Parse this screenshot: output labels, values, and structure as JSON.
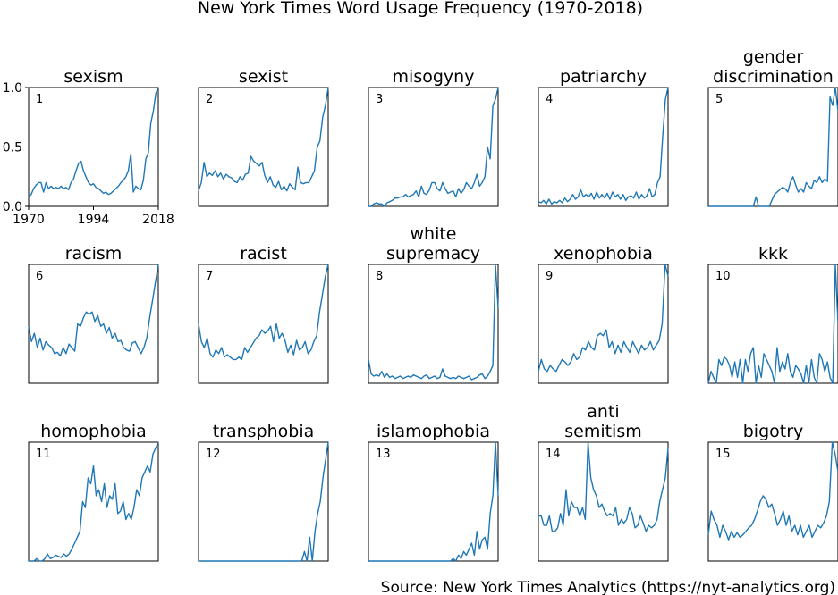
{
  "title": "New York Times Word Usage Frequency (1970-2018)",
  "source": "Source: New York Times Analytics (https://nyt-analytics.org)",
  "colors": {
    "line": "#1f77b4",
    "frame": "#000000"
  },
  "chart_data": {
    "type": "line",
    "x_range": [
      1970,
      2018
    ],
    "ylim": [
      0,
      1
    ],
    "x_ticks": [
      "1970",
      "1994",
      "2018"
    ],
    "y_ticks": [
      "0.0",
      "0.5",
      "1.0"
    ],
    "grid": false,
    "legend": "none",
    "panels": [
      {
        "title": "sexism",
        "number": "1",
        "values": [
          0.08,
          0.1,
          0.15,
          0.18,
          0.2,
          0.2,
          0.12,
          0.2,
          0.15,
          0.17,
          0.15,
          0.16,
          0.15,
          0.17,
          0.15,
          0.16,
          0.14,
          0.2,
          0.23,
          0.3,
          0.36,
          0.38,
          0.3,
          0.25,
          0.2,
          0.18,
          0.19,
          0.16,
          0.15,
          0.13,
          0.11,
          0.12,
          0.1,
          0.11,
          0.13,
          0.15,
          0.17,
          0.2,
          0.22,
          0.25,
          0.3,
          0.44,
          0.12,
          0.17,
          0.15,
          0.14,
          0.22,
          0.4,
          0.45,
          0.7,
          0.8,
          0.95,
          1.0
        ]
      },
      {
        "title": "sexist",
        "number": "2",
        "values": [
          0.13,
          0.2,
          0.37,
          0.25,
          0.28,
          0.26,
          0.3,
          0.25,
          0.28,
          0.23,
          0.27,
          0.25,
          0.24,
          0.21,
          0.2,
          0.25,
          0.22,
          0.27,
          0.28,
          0.42,
          0.38,
          0.36,
          0.34,
          0.37,
          0.26,
          0.2,
          0.25,
          0.18,
          0.16,
          0.21,
          0.14,
          0.17,
          0.13,
          0.19,
          0.16,
          0.14,
          0.33,
          0.2,
          0.19,
          0.2,
          0.2,
          0.25,
          0.3,
          0.5,
          0.55,
          0.75,
          0.85,
          1.0
        ]
      },
      {
        "title": "misogyny",
        "number": "3",
        "values": [
          0.0,
          0.0,
          0.02,
          0.03,
          0.02,
          0.02,
          0.0,
          0.03,
          0.04,
          0.05,
          0.07,
          0.07,
          0.08,
          0.08,
          0.1,
          0.08,
          0.09,
          0.1,
          0.13,
          0.08,
          0.17,
          0.11,
          0.1,
          0.14,
          0.2,
          0.2,
          0.15,
          0.13,
          0.2,
          0.15,
          0.11,
          0.12,
          0.13,
          0.08,
          0.15,
          0.11,
          0.14,
          0.2,
          0.17,
          0.15,
          0.2,
          0.27,
          0.17,
          0.2,
          0.25,
          0.5,
          0.4,
          0.85,
          0.9,
          1.0
        ]
      },
      {
        "title": "patriarchy",
        "number": "4",
        "values": [
          0.04,
          0.03,
          0.05,
          0.02,
          0.06,
          0.02,
          0.04,
          0.03,
          0.05,
          0.03,
          0.07,
          0.04,
          0.06,
          0.1,
          0.06,
          0.08,
          0.14,
          0.08,
          0.1,
          0.08,
          0.11,
          0.06,
          0.12,
          0.07,
          0.1,
          0.07,
          0.11,
          0.06,
          0.12,
          0.08,
          0.1,
          0.06,
          0.1,
          0.05,
          0.08,
          0.09,
          0.07,
          0.12,
          0.06,
          0.1,
          0.07,
          0.09,
          0.15,
          0.08,
          0.1,
          0.2,
          0.25,
          0.6,
          0.9,
          1.0
        ]
      },
      {
        "title": "gender\ndiscrimination",
        "number": "5",
        "values": [
          0.0,
          0.0,
          0.0,
          0.0,
          0.0,
          0.0,
          0.0,
          0.0,
          0.0,
          0.0,
          0.0,
          0.0,
          0.0,
          0.0,
          0.0,
          0.0,
          0.0,
          0.0,
          0.08,
          0.0,
          0.0,
          0.0,
          0.0,
          0.0,
          0.05,
          0.1,
          0.12,
          0.14,
          0.16,
          0.15,
          0.12,
          0.2,
          0.25,
          0.18,
          0.12,
          0.15,
          0.12,
          0.2,
          0.17,
          0.15,
          0.22,
          0.2,
          0.25,
          0.2,
          0.23,
          0.21,
          0.92,
          0.85,
          1.0,
          0.8
        ]
      },
      {
        "title": "racism",
        "number": "6",
        "values": [
          0.48,
          0.35,
          0.42,
          0.3,
          0.38,
          0.28,
          0.35,
          0.32,
          0.3,
          0.25,
          0.26,
          0.23,
          0.3,
          0.25,
          0.33,
          0.3,
          0.27,
          0.5,
          0.48,
          0.55,
          0.6,
          0.58,
          0.6,
          0.52,
          0.57,
          0.48,
          0.5,
          0.42,
          0.47,
          0.38,
          0.42,
          0.35,
          0.36,
          0.3,
          0.28,
          0.27,
          0.34,
          0.35,
          0.3,
          0.25,
          0.3,
          0.38,
          0.55,
          0.7,
          0.85,
          1.0
        ]
      },
      {
        "title": "racist",
        "number": "7",
        "values": [
          0.5,
          0.35,
          0.3,
          0.38,
          0.25,
          0.22,
          0.28,
          0.25,
          0.3,
          0.22,
          0.24,
          0.22,
          0.2,
          0.2,
          0.22,
          0.2,
          0.3,
          0.26,
          0.3,
          0.34,
          0.38,
          0.4,
          0.45,
          0.42,
          0.44,
          0.48,
          0.35,
          0.5,
          0.38,
          0.42,
          0.36,
          0.26,
          0.32,
          0.24,
          0.36,
          0.28,
          0.3,
          0.35,
          0.25,
          0.28,
          0.35,
          0.4,
          0.6,
          0.75,
          0.9,
          1.0
        ]
      },
      {
        "title": "white\nsupremacy",
        "number": "8",
        "values": [
          0.2,
          0.08,
          0.06,
          0.07,
          0.06,
          0.1,
          0.05,
          0.08,
          0.05,
          0.06,
          0.04,
          0.05,
          0.06,
          0.04,
          0.05,
          0.06,
          0.05,
          0.07,
          0.06,
          0.05,
          0.04,
          0.06,
          0.07,
          0.04,
          0.05,
          0.06,
          0.04,
          0.05,
          0.12,
          0.06,
          0.05,
          0.04,
          0.05,
          0.04,
          0.06,
          0.05,
          0.04,
          0.05,
          0.06,
          0.03,
          0.04,
          0.05,
          0.07,
          0.08,
          0.04,
          0.06,
          0.1,
          0.15,
          1.0,
          0.63
        ]
      },
      {
        "title": "xenophobia",
        "number": "9",
        "values": [
          0.1,
          0.2,
          0.12,
          0.1,
          0.15,
          0.12,
          0.1,
          0.15,
          0.2,
          0.18,
          0.15,
          0.18,
          0.25,
          0.2,
          0.22,
          0.3,
          0.28,
          0.35,
          0.3,
          0.28,
          0.4,
          0.42,
          0.4,
          0.45,
          0.3,
          0.35,
          0.25,
          0.32,
          0.26,
          0.35,
          0.3,
          0.26,
          0.35,
          0.3,
          0.25,
          0.32,
          0.28,
          0.3,
          0.35,
          0.28,
          0.32,
          0.36,
          0.5,
          1.0,
          0.9
        ]
      },
      {
        "title": "kkk",
        "number": "10",
        "values": [
          0.0,
          0.1,
          0.05,
          0.0,
          0.2,
          0.15,
          0.22,
          0.2,
          0.15,
          0.05,
          0.18,
          0.05,
          0.2,
          0.0,
          0.2,
          0.1,
          0.25,
          0.3,
          0.0,
          0.15,
          0.05,
          0.25,
          0.2,
          0.15,
          0.1,
          0.0,
          0.3,
          0.1,
          0.18,
          0.12,
          0.25,
          0.1,
          0.05,
          0.15,
          0.12,
          0.08,
          0.0,
          0.15,
          0.0,
          0.2,
          0.05,
          0.0,
          0.25,
          0.2,
          0.1,
          0.18,
          0.05,
          0.0,
          1.0,
          0.5
        ]
      },
      {
        "title": "homophobia",
        "number": "11",
        "values": [
          0.0,
          0.0,
          0.0,
          0.02,
          0.0,
          0.0,
          0.02,
          0.06,
          0.02,
          0.03,
          0.05,
          0.04,
          0.03,
          0.06,
          0.04,
          0.06,
          0.1,
          0.15,
          0.2,
          0.25,
          0.5,
          0.45,
          0.7,
          0.65,
          0.8,
          0.55,
          0.6,
          0.5,
          0.65,
          0.45,
          0.55,
          0.52,
          0.65,
          0.4,
          0.42,
          0.5,
          0.35,
          0.4,
          0.35,
          0.45,
          0.6,
          0.55,
          0.7,
          0.75,
          0.8,
          0.75,
          0.9,
          0.95,
          1.0
        ]
      },
      {
        "title": "transphobia",
        "number": "12",
        "values": [
          0.0,
          0.0,
          0.0,
          0.0,
          0.0,
          0.0,
          0.0,
          0.0,
          0.0,
          0.0,
          0.0,
          0.0,
          0.0,
          0.0,
          0.0,
          0.0,
          0.0,
          0.0,
          0.0,
          0.0,
          0.0,
          0.0,
          0.0,
          0.0,
          0.0,
          0.0,
          0.0,
          0.0,
          0.0,
          0.0,
          0.0,
          0.0,
          0.0,
          0.0,
          0.0,
          0.0,
          0.0,
          0.0,
          0.0,
          0.0,
          0.08,
          0.0,
          0.2,
          0.0,
          0.25,
          0.4,
          0.5,
          0.7,
          0.85,
          1.0
        ]
      },
      {
        "title": "islamophobia",
        "number": "13",
        "values": [
          0.0,
          0.0,
          0.0,
          0.0,
          0.0,
          0.0,
          0.0,
          0.0,
          0.0,
          0.0,
          0.0,
          0.0,
          0.0,
          0.0,
          0.0,
          0.0,
          0.0,
          0.0,
          0.0,
          0.0,
          0.0,
          0.0,
          0.0,
          0.0,
          0.0,
          0.0,
          0.0,
          0.0,
          0.0,
          0.0,
          0.0,
          0.0,
          0.02,
          0.0,
          0.05,
          0.02,
          0.08,
          0.05,
          0.1,
          0.15,
          0.05,
          0.25,
          0.1,
          0.18,
          0.2,
          0.1,
          0.4,
          0.55,
          1.0,
          0.55
        ]
      },
      {
        "title": "anti\nsemitism",
        "number": "14",
        "values": [
          0.38,
          0.38,
          0.3,
          0.3,
          0.38,
          0.25,
          0.25,
          0.28,
          0.4,
          0.3,
          0.6,
          0.38,
          0.5,
          0.45,
          0.45,
          0.38,
          0.45,
          0.35,
          1.0,
          0.7,
          0.6,
          0.55,
          0.45,
          0.48,
          0.42,
          0.38,
          0.4,
          0.38,
          0.45,
          0.3,
          0.35,
          0.32,
          0.35,
          0.45,
          0.4,
          0.28,
          0.3,
          0.38,
          0.32,
          0.25,
          0.3,
          0.28,
          0.3,
          0.35,
          0.5,
          0.6,
          0.7,
          0.95
        ]
      },
      {
        "title": "bigotry",
        "number": "15",
        "values": [
          0.22,
          0.42,
          0.35,
          0.3,
          0.2,
          0.3,
          0.25,
          0.18,
          0.25,
          0.2,
          0.24,
          0.2,
          0.22,
          0.25,
          0.28,
          0.3,
          0.35,
          0.42,
          0.5,
          0.55,
          0.52,
          0.45,
          0.48,
          0.4,
          0.3,
          0.35,
          0.42,
          0.3,
          0.38,
          0.25,
          0.3,
          0.22,
          0.3,
          0.2,
          0.25,
          0.3,
          0.2,
          0.25,
          0.3,
          0.28,
          0.32,
          0.38,
          0.5,
          1.0,
          0.9,
          0.75
        ]
      }
    ]
  }
}
